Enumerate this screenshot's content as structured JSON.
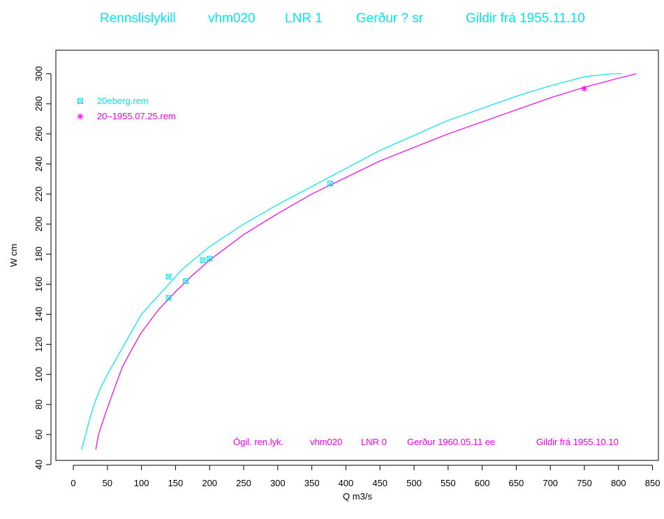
{
  "colors": {
    "cyan": "#00e5ee",
    "magenta": "#ee00ee",
    "axis": "#000000"
  },
  "title_parts": [
    "Rennslislykill",
    "vhm020",
    "LNR 1",
    "Gerður ? sr",
    "Gildir frá 1955.11.10"
  ],
  "annotation_parts": [
    "Ógil. ren.lyk.",
    "vhm020",
    "LNR 0",
    "Gerður 1960.05.11 ee",
    "Gildir frá 1955.10.10"
  ],
  "chart_data": {
    "type": "line",
    "xlabel": "Q m3/s",
    "ylabel": "W cm",
    "xlim": [
      -20,
      860
    ],
    "ylim": [
      40,
      310
    ],
    "xticks": [
      0,
      50,
      100,
      150,
      200,
      250,
      300,
      350,
      400,
      450,
      500,
      550,
      600,
      650,
      700,
      750,
      800,
      850
    ],
    "yticks": [
      40,
      60,
      80,
      100,
      120,
      140,
      160,
      180,
      200,
      220,
      240,
      260,
      280,
      300
    ],
    "legend_position": "top-left",
    "series": [
      {
        "kind": "curve",
        "color": "cyan",
        "x": [
          12,
          18,
          22,
          27,
          33,
          40,
          50,
          60,
          75,
          100,
          130,
          160,
          200,
          250,
          300,
          350,
          400,
          450,
          500,
          550,
          600,
          650,
          700,
          750,
          790,
          805
        ],
        "y": [
          50,
          60,
          67,
          75,
          83,
          91,
          100,
          108,
          120,
          140,
          155,
          170,
          185,
          200,
          213,
          225,
          237,
          249,
          259,
          269,
          277,
          285,
          292,
          298,
          300,
          300
        ]
      },
      {
        "kind": "curve",
        "color": "magenta",
        "x": [
          33,
          37,
          42,
          48,
          55,
          63,
          72,
          85,
          100,
          125,
          150,
          175,
          200,
          250,
          300,
          350,
          400,
          450,
          500,
          550,
          600,
          650,
          700,
          750,
          800,
          826
        ],
        "y": [
          50,
          60,
          67,
          75,
          84,
          94,
          105,
          116,
          128,
          143,
          155,
          166,
          176,
          193,
          207,
          220,
          231,
          242,
          251,
          260,
          268,
          276,
          284,
          291,
          297,
          300
        ]
      },
      {
        "kind": "points",
        "name": "20eberg.rem",
        "marker": "boxed-x",
        "color": "cyan",
        "x": [
          140,
          140,
          165,
          190,
          200,
          377
        ],
        "y": [
          165,
          151,
          162,
          176,
          177,
          227
        ]
      },
      {
        "kind": "points",
        "name": "20–1955.07.25.rem",
        "marker": "asterisk",
        "color": "magenta",
        "x": [
          750
        ],
        "y": [
          290
        ]
      }
    ]
  }
}
